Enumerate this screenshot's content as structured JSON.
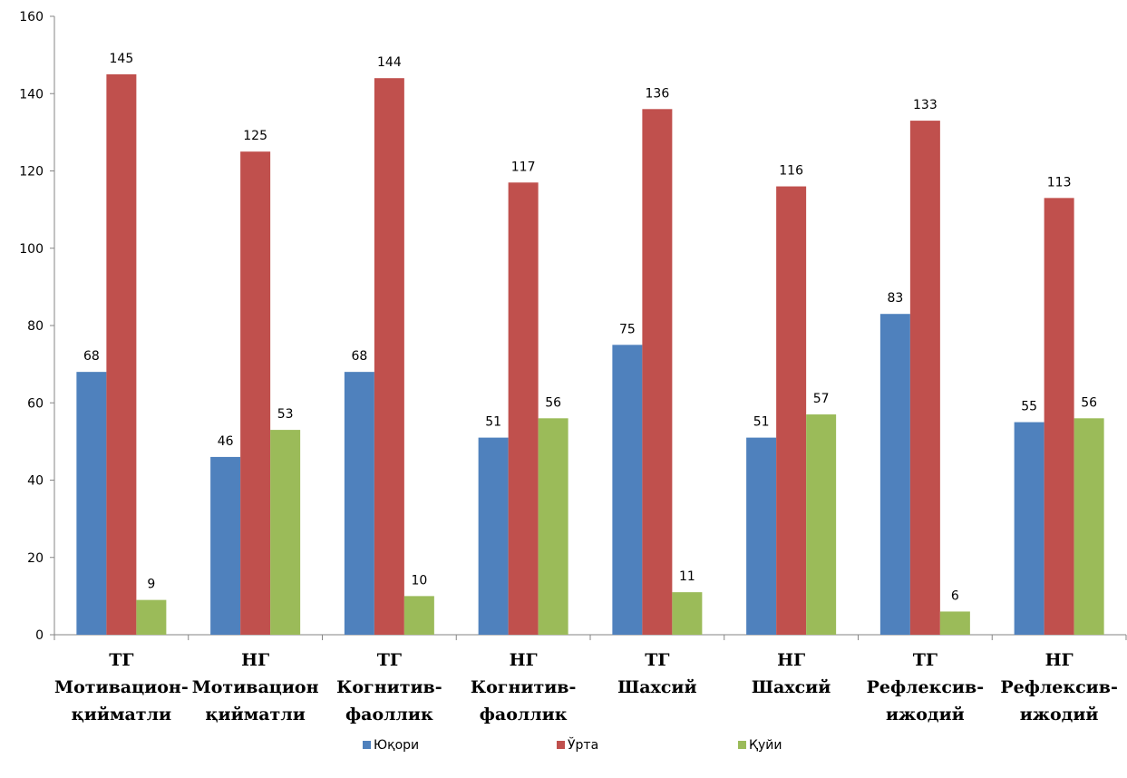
{
  "chart_data": {
    "type": "bar",
    "categories": [
      [
        "ТГ",
        "Мотивацион-",
        "қийматли"
      ],
      [
        "НГ",
        "Мотивацион",
        "қийматли"
      ],
      [
        "ТГ",
        "Когнитив-",
        "фаоллик"
      ],
      [
        "НГ",
        "Когнитив-",
        "фаоллик"
      ],
      [
        "ТГ",
        "Шахсий"
      ],
      [
        "НГ",
        "Шахсий"
      ],
      [
        "ТГ",
        "Рефлексив-",
        "ижодий"
      ],
      [
        "НГ",
        "Рефлексив-",
        "ижодий"
      ]
    ],
    "series": [
      {
        "name": "Юқори",
        "color": "#4F81BD",
        "values": [
          68,
          46,
          68,
          51,
          75,
          51,
          83,
          55
        ]
      },
      {
        "name": "Ўрта",
        "color": "#C0504D",
        "values": [
          145,
          125,
          144,
          117,
          136,
          116,
          133,
          113
        ]
      },
      {
        "name": "Қуйи",
        "color": "#9BBB59",
        "values": [
          9,
          53,
          10,
          56,
          11,
          57,
          6,
          56
        ]
      }
    ],
    "ylim": [
      0,
      160
    ],
    "yticks": [
      0,
      20,
      40,
      60,
      80,
      100,
      120,
      140,
      160
    ],
    "grid": false,
    "legend": "bottom"
  }
}
